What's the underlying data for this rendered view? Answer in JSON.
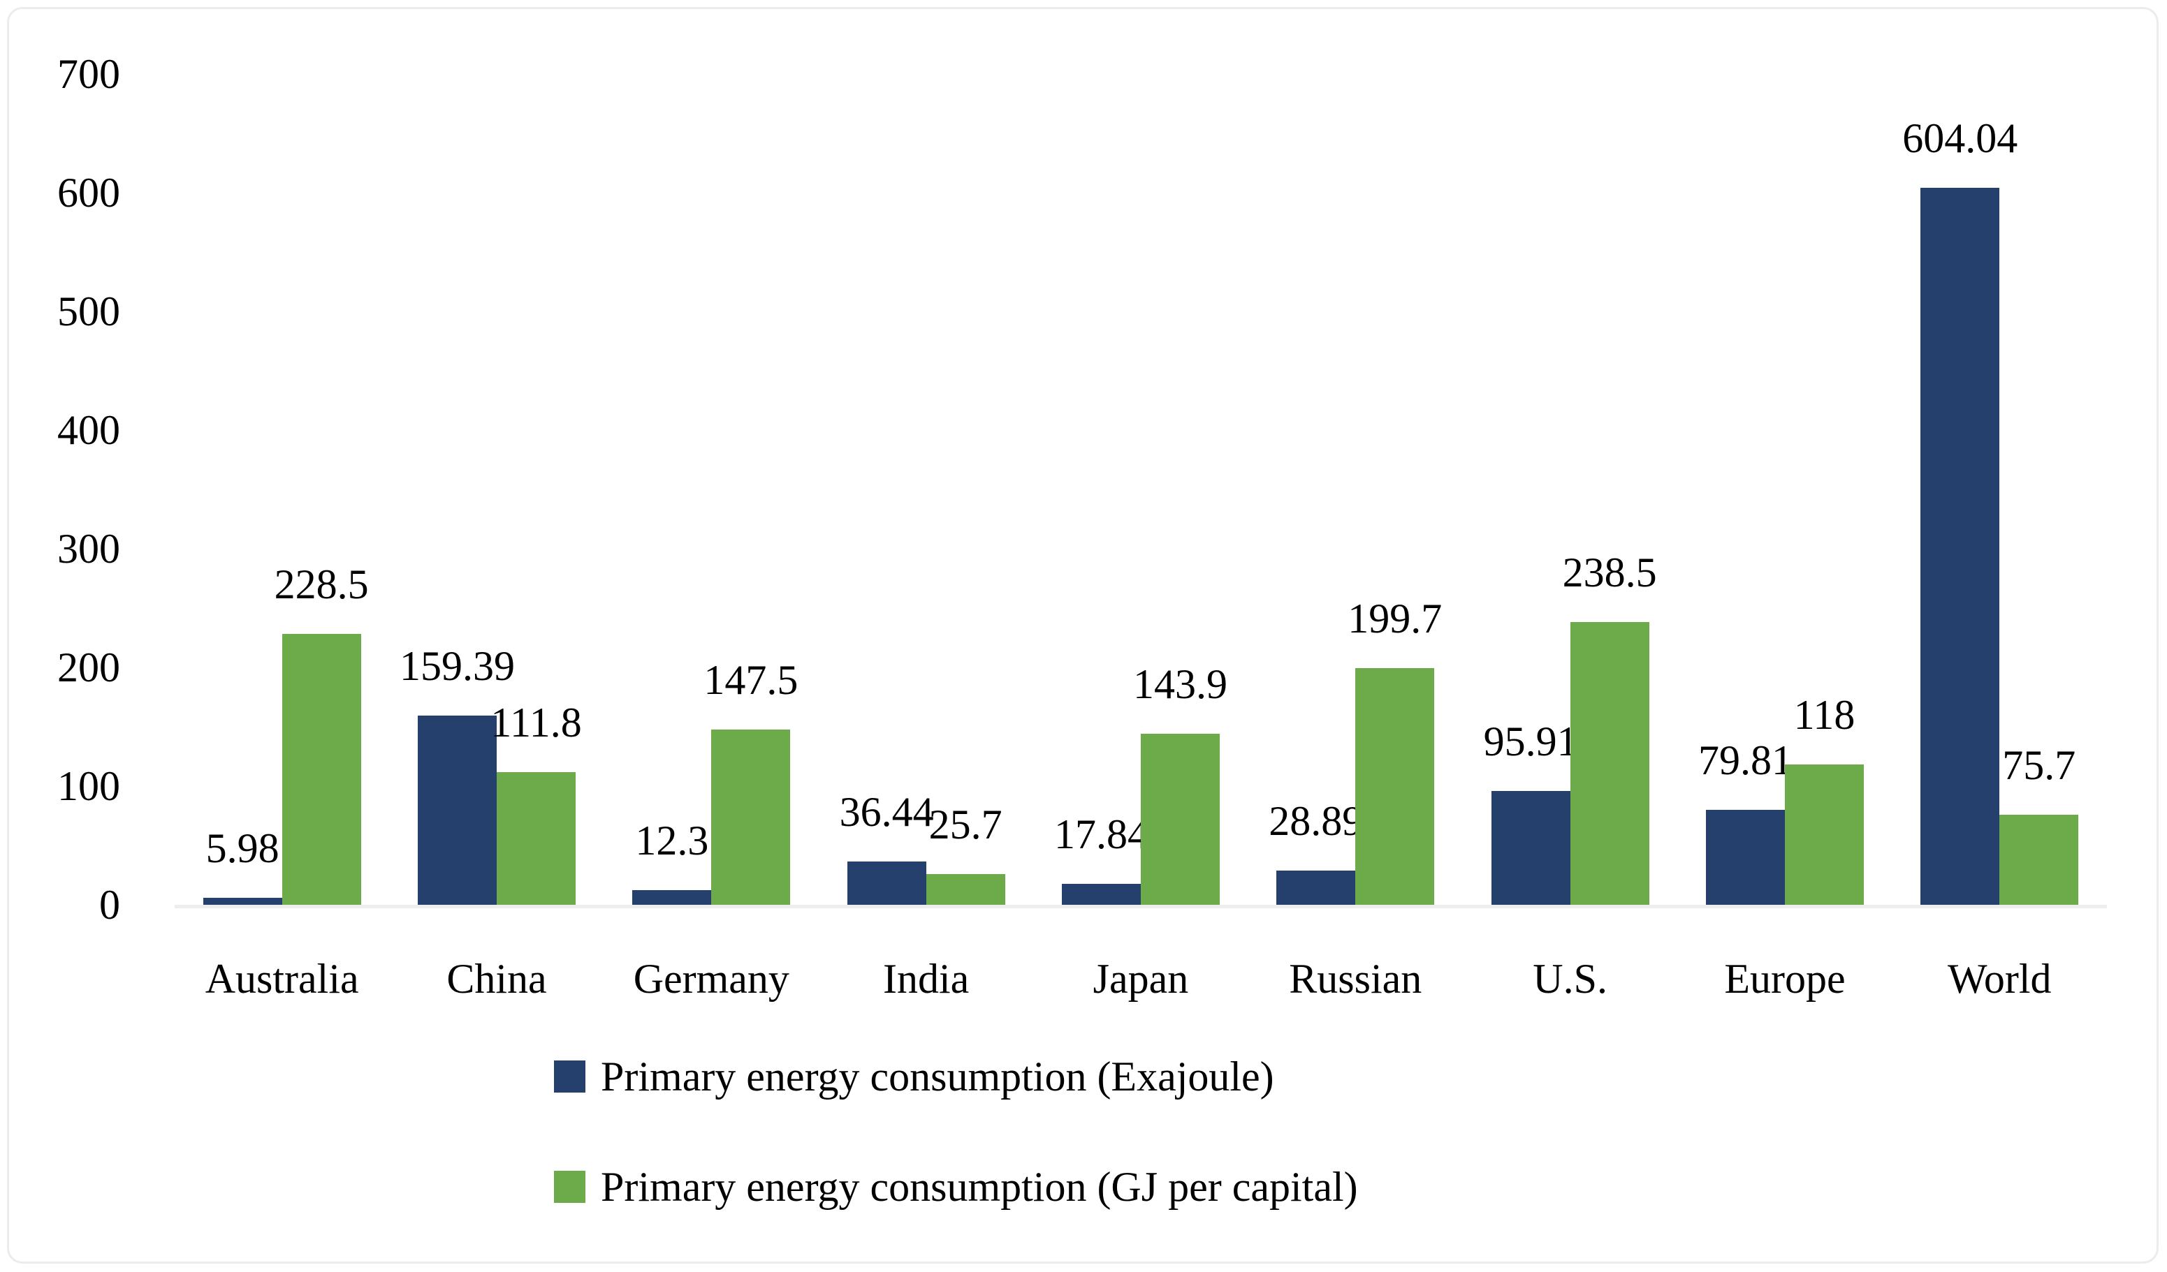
{
  "chart_data": {
    "type": "bar",
    "categories": [
      "Australia",
      "China",
      "Germany",
      "India",
      "Japan",
      "Russian",
      "U.S.",
      "Europe",
      "World"
    ],
    "series": [
      {
        "name": "Primary energy consumption (Exajoule)",
        "color": "#25406D",
        "values": [
          5.98,
          159.39,
          12.3,
          36.44,
          17.84,
          28.89,
          95.91,
          79.81,
          604.04
        ],
        "labels": [
          "5.98",
          "159.39",
          "12.3",
          "36.44",
          "17.84",
          "28.89",
          "95.91",
          "79.81",
          "604.04"
        ]
      },
      {
        "name": "Primary energy consumption (GJ per capital)",
        "color": "#6DAB4A",
        "values": [
          228.5,
          111.8,
          147.5,
          25.7,
          143.9,
          199.7,
          238.5,
          118,
          75.7
        ],
        "labels": [
          "228.5",
          "111.8",
          "147.5",
          "25.7",
          "143.9",
          "199.7",
          "238.5",
          "118",
          "75.7"
        ]
      }
    ],
    "ylim": [
      0,
      700
    ],
    "yticks": [
      0,
      100,
      200,
      300,
      400,
      500,
      600,
      700
    ],
    "grid": false,
    "legend_position": "bottom-left"
  },
  "style": {
    "axis_line_color": "#ededed",
    "frame_border_color": "#ececec",
    "text_color": "#000000",
    "background": "#ffffff"
  }
}
